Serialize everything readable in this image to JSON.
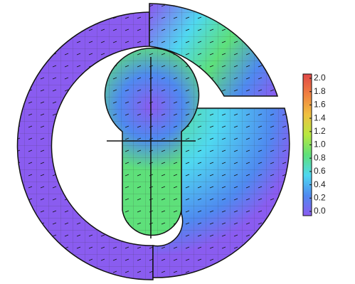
{
  "chart_data": {
    "type": "contour",
    "clim": [
      0,
      2
    ],
    "colormap": [
      "#8a5cf0",
      "#4f8af0",
      "#4fd8f0",
      "#5ee07a",
      "#b8e840",
      "#f0c040",
      "#f08040",
      "#e04848"
    ],
    "cticks": [
      {
        "value": 2,
        "label": "2.0"
      },
      {
        "value": 1.8,
        "label": "1.8"
      },
      {
        "value": 1.6,
        "label": "1.6"
      },
      {
        "value": 1.4,
        "label": "1.4"
      },
      {
        "value": 1.2,
        "label": "1.2"
      },
      {
        "value": 1,
        "label": "1.0"
      },
      {
        "value": 0.8,
        "label": "0.8"
      },
      {
        "value": 0.6,
        "label": "0.6"
      },
      {
        "value": 0.4,
        "label": "0.4"
      },
      {
        "value": 0.2,
        "label": "0.2"
      },
      {
        "value": 0,
        "label": "0.0"
      }
    ]
  }
}
